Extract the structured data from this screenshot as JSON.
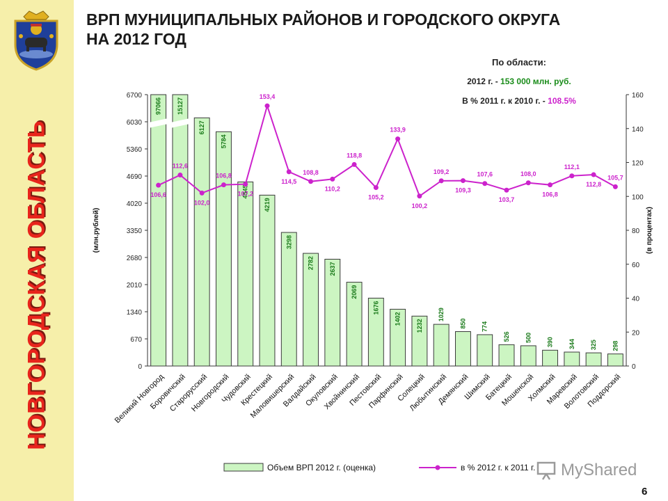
{
  "sidebar": {
    "vertical_title": "НОВГОРОДСКАЯ ОБЛАСТЬ"
  },
  "header": {
    "title_line1": "ВРП МУНИЦИПАЛЬНЫХ РАЙОНОВ И ГОРОДСКОГО ОКРУГА",
    "title_line2": "НА 2012 ГОД"
  },
  "page_number": "6",
  "watermark": {
    "text": "MyShared"
  },
  "colors": {
    "bar_fill": "#ccf5c2",
    "bar_stroke": "#3a3a3a",
    "line": "#cc22cc",
    "bar_label": "#1a7a1a",
    "accent_green": "#1a8c1a",
    "sidebar_bg": "#f6efaa",
    "sidebar_text": "#e8241c"
  },
  "chart_data": {
    "type": "bar+line",
    "annotation": {
      "title": "По области:",
      "line1_prefix": "2012 г. - ",
      "line1_value": "153 000 млн. руб.",
      "line2_prefix": "В % 2011 г. к 2010 г. - ",
      "line2_value": "108.5%"
    },
    "categories": [
      "Великий Новгород",
      "Боровичский",
      "Старорусский",
      "Новгородский",
      "Чудовский",
      "Крестецкий",
      "Маловишерский",
      "Валдайский",
      "Окуловский",
      "Хвойнинский",
      "Пестовский",
      "Парфинский",
      "Солецкий",
      "Любытинский",
      "Демянский",
      "Шимский",
      "Батецкий",
      "Мошенской",
      "Холмский",
      "Маревский",
      "Волотовский",
      "Поддорский"
    ],
    "bar_series": {
      "name": "Объем ВРП 2012 г. (оценка)",
      "values": [
        97066,
        15127,
        6127,
        5784,
        4545,
        4219,
        3298,
        2782,
        2637,
        2069,
        1676,
        1402,
        1232,
        1029,
        850,
        774,
        526,
        500,
        390,
        344,
        325,
        298
      ],
      "labels": [
        "97066",
        "15127",
        "6127",
        "5784",
        "4545",
        "4219",
        "3298",
        "2782",
        "2637",
        "2069",
        "1676",
        "1402",
        "1232",
        "1029",
        "850",
        "774",
        "526",
        "500",
        "390",
        "344",
        "325",
        "298"
      ],
      "axis_break_above": 6700
    },
    "line_series": {
      "name": "в % 2012 г. к 2011 г.",
      "values": [
        106.6,
        112.6,
        102.0,
        106.8,
        107.2,
        153.4,
        114.5,
        108.8,
        110.2,
        118.8,
        105.2,
        133.9,
        100.2,
        109.2,
        109.3,
        107.6,
        103.7,
        108.0,
        106.8,
        112.1,
        112.8,
        105.7
      ],
      "labels": [
        "106,6",
        "112,6",
        "102,0",
        "106,8",
        "107,2",
        "153,4",
        "114,5",
        "108,8",
        "110,2",
        "118,8",
        "105,2",
        "133,9",
        "100,2",
        "109,2",
        "109,3",
        "107,6",
        "103,7",
        "108,0",
        "106,8",
        "112,1",
        "112,8",
        "105,7"
      ]
    },
    "left_axis": {
      "label": "(млн.рублей)",
      "ylim": [
        0,
        6700
      ],
      "ticks": [
        0,
        670,
        1340,
        2010,
        2680,
        3350,
        4020,
        4690,
        5360,
        6030,
        6700
      ]
    },
    "right_axis": {
      "label": "(в процентах)",
      "ylim": [
        0,
        160
      ],
      "ticks": [
        0,
        20,
        40,
        60,
        80,
        100,
        120,
        140,
        160
      ]
    },
    "legend_position": "bottom"
  }
}
